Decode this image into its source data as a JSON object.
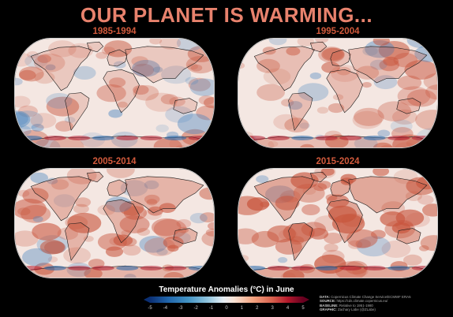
{
  "title": "OUR PLANET IS WARMING...",
  "panels": [
    {
      "label": "1985-1994",
      "warmth": 0.25
    },
    {
      "label": "1995-2004",
      "warmth": 0.45
    },
    {
      "label": "2005-2014",
      "warmth": 0.65
    },
    {
      "label": "2015-2024",
      "warmth": 0.9
    }
  ],
  "legend": {
    "title": "Temperature Anomalies (°C) in June",
    "ticks": [
      "-5",
      "-4",
      "-3",
      "-2",
      "-1",
      "0",
      "1",
      "2",
      "3",
      "4",
      "5"
    ]
  },
  "credits": {
    "data_label": "DATA:",
    "data_value": "Copernicus Climate Change Service/ECMWF ERA5",
    "source_label": "SOURCE:",
    "source_value": "https://cds.climate.copernicus.eu/",
    "baseline_label": "BASELINE:",
    "baseline_value": "Relative to 1951-1980",
    "graphic_label": "GRAPHIC:",
    "graphic_value": "Zachary Labe (@ZLabe)"
  },
  "colors": {
    "title": "#e8826d",
    "panel_title": "#d25a3c",
    "warm": "#c8553d",
    "cold": "#4a86c0",
    "neutral": "#f4e7e2"
  }
}
